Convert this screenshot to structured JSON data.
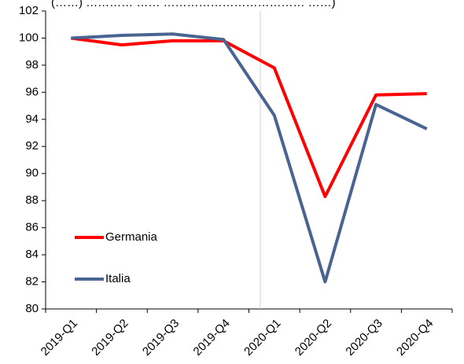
{
  "chart_data": {
    "type": "line",
    "title_partial": "(……) ………… …… ……………………………… ……)",
    "categories": [
      "2019-Q1",
      "2019-Q2",
      "2019-Q3",
      "2019-Q4",
      "2020-Q1",
      "2020-Q2",
      "2020-Q3",
      "2020-Q4"
    ],
    "series": [
      {
        "name": "Germania",
        "color": "#ff0000",
        "values": [
          100.0,
          99.5,
          99.8,
          99.8,
          97.8,
          88.3,
          95.8,
          95.9
        ]
      },
      {
        "name": "Italia",
        "color": "#4a6491",
        "values": [
          100.0,
          100.2,
          100.3,
          99.9,
          94.3,
          82.0,
          95.1,
          93.3
        ]
      }
    ],
    "ylim": [
      80,
      102
    ],
    "yticks": [
      80,
      82,
      84,
      86,
      88,
      90,
      92,
      94,
      96,
      98,
      100,
      102
    ],
    "xlabel": "",
    "ylabel": "",
    "grid": false,
    "legend": "bottom-left"
  }
}
